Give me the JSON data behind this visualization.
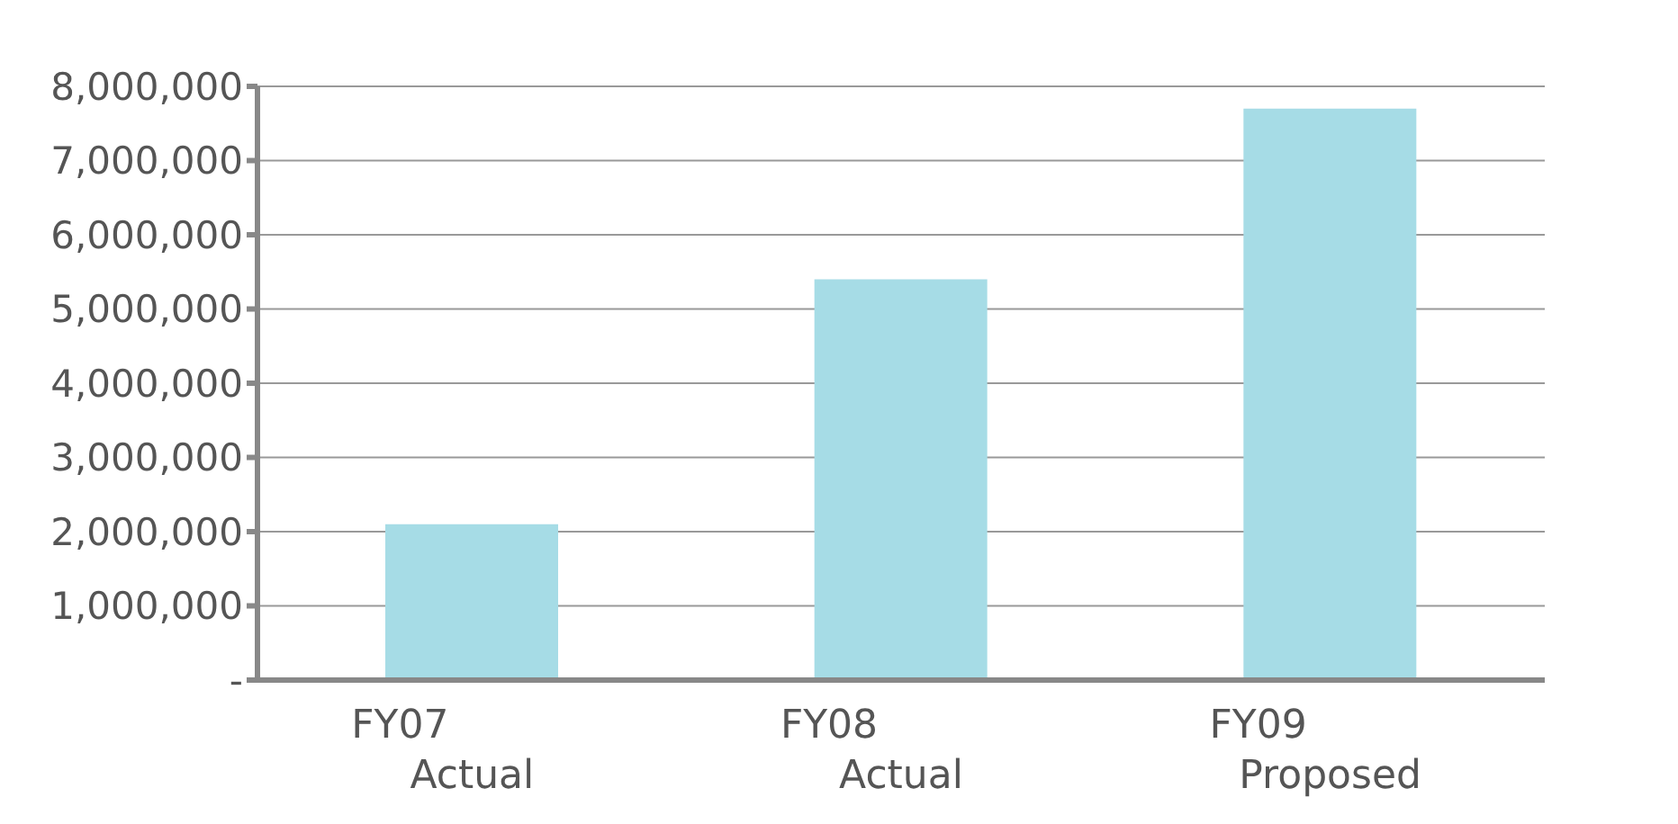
{
  "chart_data": {
    "type": "bar",
    "categories": [
      "FY07\nActual",
      "FY08\nActual",
      "FY09\nProposed"
    ],
    "values": [
      2100000,
      5400000,
      7700000
    ],
    "color": "#a6dce6",
    "ylim": [
      0,
      8000000
    ],
    "yticks": [
      {
        "value": 0,
        "label": "-"
      },
      {
        "value": 1000000,
        "label": "1,000,000"
      },
      {
        "value": 2000000,
        "label": "2,000,000"
      },
      {
        "value": 3000000,
        "label": "3,000,000"
      },
      {
        "value": 4000000,
        "label": "4,000,000"
      },
      {
        "value": 5000000,
        "label": "5,000,000"
      },
      {
        "value": 6000000,
        "label": "6,000,000"
      },
      {
        "value": 7000000,
        "label": "7,000,000"
      },
      {
        "value": 8000000,
        "label": "8,000,000"
      }
    ],
    "grid": "y"
  }
}
